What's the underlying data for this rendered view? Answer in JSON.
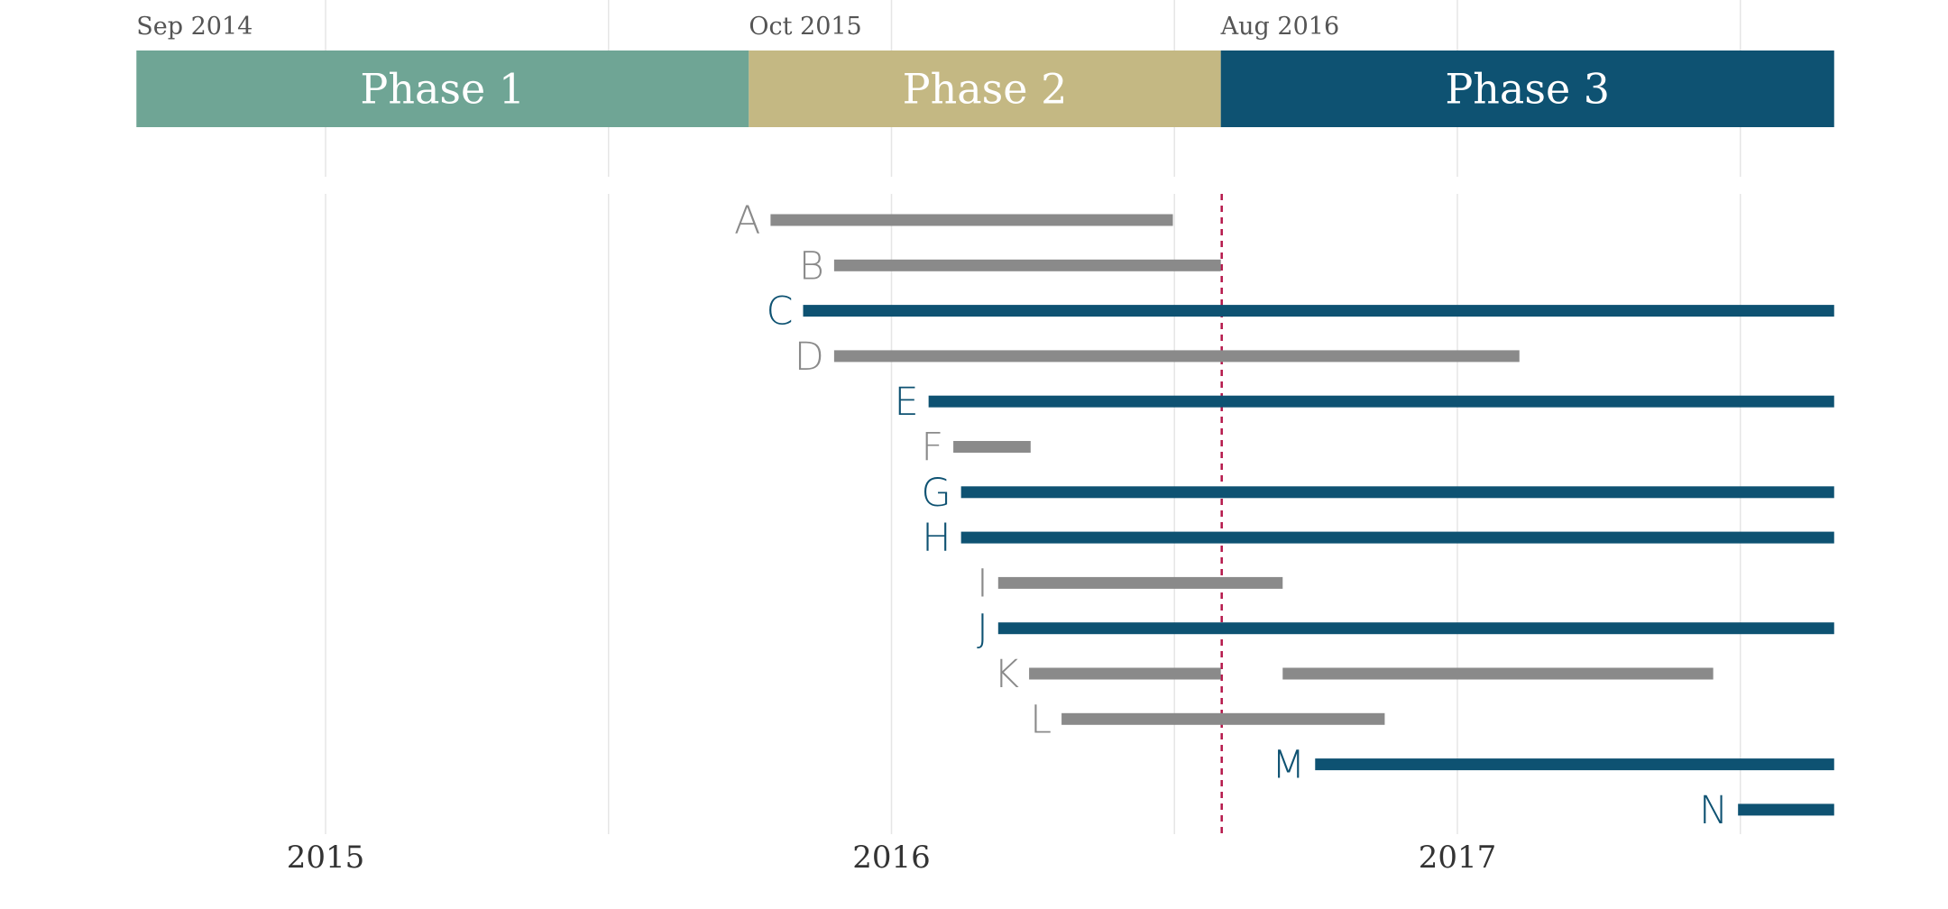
{
  "chart_data": {
    "type": "gantt",
    "x_axis": {
      "range": [
        "2014-08-01",
        "2017-09-01"
      ],
      "year_labels": [
        "2015",
        "2016",
        "2017"
      ],
      "grid": true
    },
    "phases": [
      {
        "name": "Phase 1",
        "start": "2014-09-01",
        "end": "2015-10-01",
        "start_label": "Sep 2014",
        "color": "#6fa595"
      },
      {
        "name": "Phase 2",
        "start": "2015-10-01",
        "end": "2016-08-01",
        "start_label": "Oct 2015",
        "color": "#c4b883"
      },
      {
        "name": "Phase 3",
        "start": "2016-08-01",
        "end": "2017-09-01",
        "start_label": "Aug 2016",
        "color": "#0e5272"
      }
    ],
    "reference_line": {
      "date": "2016-08-01",
      "color": "#b5174a",
      "style": "dashed"
    },
    "colors": {
      "inactive": "#8a8a8a",
      "active": "#0e5272"
    },
    "rows": [
      {
        "label": "A",
        "status": "inactive",
        "segments": [
          [
            "2015-10-15",
            "2016-07-01"
          ]
        ]
      },
      {
        "label": "B",
        "status": "inactive",
        "segments": [
          [
            "2015-11-25",
            "2016-08-01"
          ]
        ]
      },
      {
        "label": "C",
        "status": "active",
        "segments": [
          [
            "2015-11-05",
            "2017-09-01"
          ]
        ]
      },
      {
        "label": "D",
        "status": "inactive",
        "segments": [
          [
            "2015-11-25",
            "2017-02-10"
          ]
        ]
      },
      {
        "label": "E",
        "status": "active",
        "segments": [
          [
            "2016-01-25",
            "2017-09-01"
          ]
        ]
      },
      {
        "label": "F",
        "status": "inactive",
        "segments": [
          [
            "2016-02-10",
            "2016-03-31"
          ]
        ]
      },
      {
        "label": "G",
        "status": "active",
        "segments": [
          [
            "2016-02-15",
            "2017-09-01"
          ]
        ]
      },
      {
        "label": "H",
        "status": "active",
        "segments": [
          [
            "2016-02-15",
            "2017-09-01"
          ]
        ]
      },
      {
        "label": "I",
        "status": "inactive",
        "segments": [
          [
            "2016-03-10",
            "2016-09-10"
          ]
        ]
      },
      {
        "label": "J",
        "status": "active",
        "segments": [
          [
            "2016-03-10",
            "2017-09-01"
          ]
        ]
      },
      {
        "label": "K",
        "status": "inactive",
        "segments": [
          [
            "2016-03-30",
            "2016-08-01"
          ],
          [
            "2016-09-10",
            "2017-06-15"
          ]
        ]
      },
      {
        "label": "L",
        "status": "inactive",
        "segments": [
          [
            "2016-04-20",
            "2016-11-15"
          ]
        ]
      },
      {
        "label": "M",
        "status": "active",
        "segments": [
          [
            "2016-10-01",
            "2017-09-01"
          ]
        ]
      },
      {
        "label": "N",
        "status": "active",
        "segments": [
          [
            "2017-07-01",
            "2017-09-01"
          ]
        ]
      }
    ]
  }
}
